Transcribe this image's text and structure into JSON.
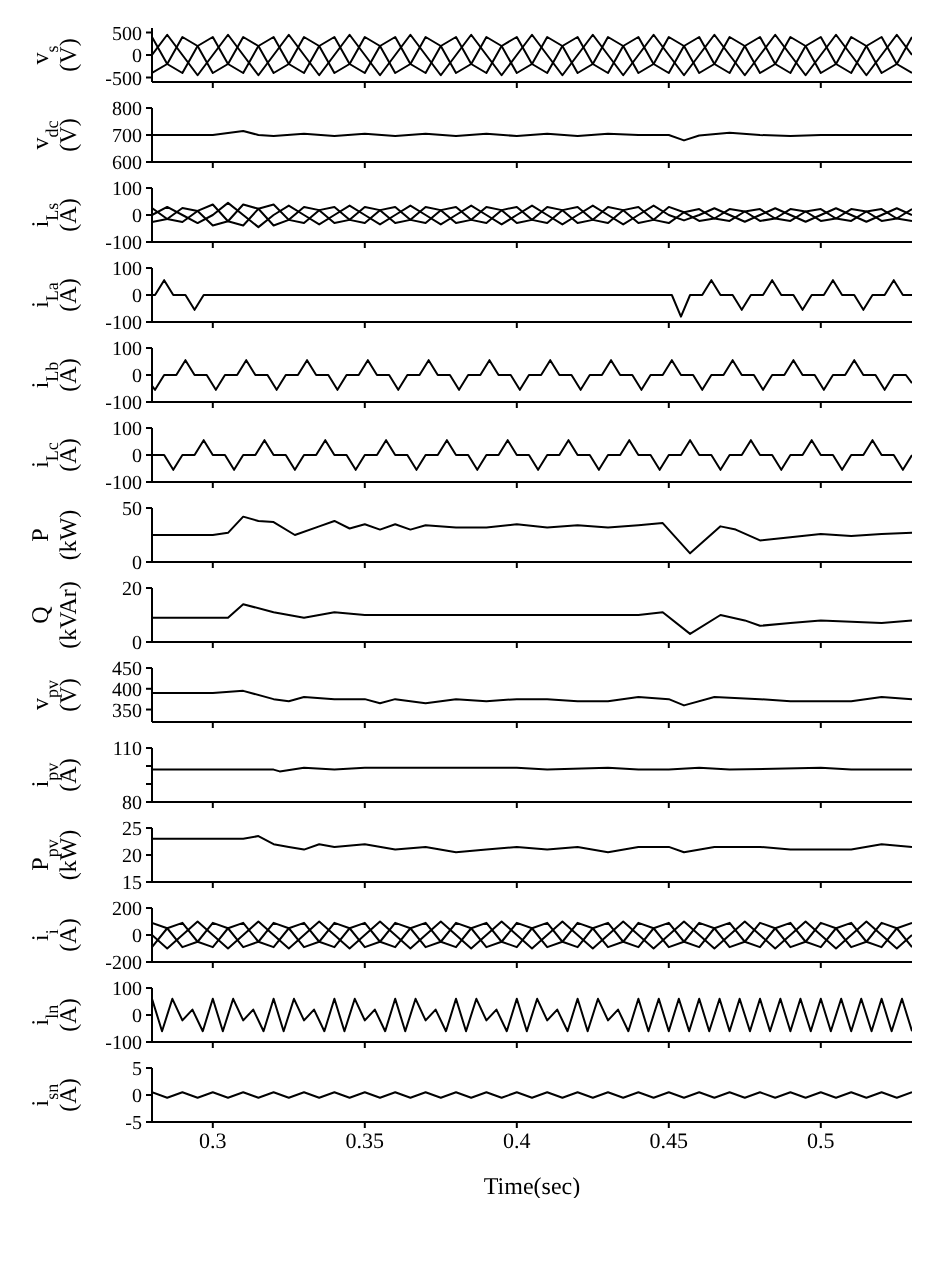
{
  "chart_data": [
    {
      "type": "line",
      "ylabel": "v$_{s}$ (V)",
      "xlim": [
        0.28,
        0.53
      ],
      "xticks": [
        0.3,
        0.35,
        0.4,
        0.45,
        0.5
      ],
      "ylim": [
        -600,
        600
      ],
      "yticks": [
        -500,
        0,
        500
      ],
      "tick_labels": "y",
      "x": [
        0.28,
        0.285,
        0.29,
        0.295,
        0.3,
        0.305,
        0.31,
        0.315,
        0.32,
        0.325,
        0.33,
        0.335,
        0.34,
        0.345,
        0.35,
        0.355,
        0.36,
        0.365,
        0.37,
        0.375,
        0.38,
        0.385,
        0.39,
        0.395,
        0.4,
        0.405,
        0.41,
        0.415,
        0.42,
        0.425,
        0.43,
        0.435,
        0.44,
        0.445,
        0.45,
        0.455,
        0.46,
        0.465,
        0.47,
        0.475,
        0.48,
        0.485,
        0.49,
        0.495,
        0.5,
        0.505,
        0.51,
        0.515,
        0.52,
        0.525,
        0.53
      ],
      "series": [
        {
          "color": "#000000",
          "values": [
            0,
            450,
            0,
            -450,
            0,
            450,
            0,
            -450,
            0,
            450,
            0,
            -450,
            0,
            450,
            0,
            -450,
            0,
            450,
            0,
            -450,
            0,
            450,
            0,
            -450,
            0,
            450,
            0,
            -450,
            0,
            450,
            0,
            -450,
            0,
            450,
            0,
            -450,
            0,
            450,
            0,
            -450,
            0,
            450,
            0,
            -450,
            0,
            450,
            0,
            -450,
            0,
            450,
            0
          ]
        },
        {
          "color": "#000000",
          "values": [
            -400,
            -200,
            400,
            200,
            -400,
            -200,
            400,
            200,
            -400,
            -200,
            400,
            200,
            -400,
            -200,
            400,
            200,
            -400,
            -200,
            400,
            200,
            -400,
            -200,
            400,
            200,
            -400,
            -200,
            400,
            200,
            -400,
            -200,
            400,
            200,
            -400,
            -200,
            400,
            200,
            -400,
            -200,
            400,
            200,
            -400,
            -200,
            400,
            200,
            -400,
            -200,
            400,
            200,
            -400,
            -200,
            400
          ]
        },
        {
          "color": "#000000",
          "values": [
            400,
            -200,
            -400,
            200,
            400,
            -200,
            -400,
            200,
            400,
            -200,
            -400,
            200,
            400,
            -200,
            -400,
            200,
            400,
            -200,
            -400,
            200,
            400,
            -200,
            -400,
            200,
            400,
            -200,
            -400,
            200,
            400,
            -200,
            -400,
            200,
            400,
            -200,
            -400,
            200,
            400,
            -200,
            -400,
            200,
            400,
            -200,
            -400,
            200,
            400,
            -200,
            -400,
            200,
            400,
            -200,
            -400
          ]
        }
      ]
    },
    {
      "type": "line",
      "ylabel": "v$_{dc}$ (V)",
      "xlim": [
        0.28,
        0.53
      ],
      "xticks": [
        0.3,
        0.35,
        0.4,
        0.45,
        0.5
      ],
      "ylim": [
        600,
        800
      ],
      "yticks": [
        600,
        700,
        800
      ],
      "tick_labels": "y",
      "series": [
        {
          "color": "#000000",
          "x": [
            0.28,
            0.3,
            0.31,
            0.315,
            0.32,
            0.33,
            0.34,
            0.35,
            0.36,
            0.37,
            0.38,
            0.39,
            0.4,
            0.41,
            0.42,
            0.43,
            0.44,
            0.45,
            0.455,
            0.46,
            0.47,
            0.48,
            0.49,
            0.5,
            0.53
          ],
          "values": [
            700,
            700,
            715,
            700,
            696,
            705,
            696,
            705,
            696,
            705,
            696,
            705,
            696,
            705,
            696,
            705,
            700,
            700,
            680,
            698,
            708,
            700,
            696,
            700,
            700
          ]
        }
      ]
    },
    {
      "type": "line",
      "ylabel": "i$_{Ls}$ (A)",
      "xlim": [
        0.28,
        0.53
      ],
      "xticks": [
        0.3,
        0.35,
        0.4,
        0.45,
        0.5
      ],
      "ylim": [
        -100,
        100
      ],
      "yticks": [
        -100,
        0,
        100
      ],
      "tick_labels": "y",
      "x": [
        0.28,
        0.285,
        0.29,
        0.295,
        0.3,
        0.305,
        0.31,
        0.315,
        0.32,
        0.325,
        0.33,
        0.335,
        0.34,
        0.345,
        0.35,
        0.355,
        0.36,
        0.365,
        0.37,
        0.375,
        0.38,
        0.385,
        0.39,
        0.395,
        0.4,
        0.405,
        0.41,
        0.415,
        0.42,
        0.425,
        0.43,
        0.435,
        0.44,
        0.445,
        0.45,
        0.455,
        0.46,
        0.465,
        0.47,
        0.475,
        0.48,
        0.485,
        0.49,
        0.495,
        0.5,
        0.505,
        0.51,
        0.515,
        0.52,
        0.525,
        0.53
      ],
      "series": [
        {
          "color": "#000000",
          "values": [
            0,
            30,
            0,
            -30,
            0,
            45,
            0,
            -45,
            0,
            35,
            0,
            -35,
            0,
            35,
            0,
            -35,
            0,
            35,
            0,
            -35,
            0,
            35,
            0,
            -35,
            0,
            35,
            0,
            -35,
            0,
            35,
            0,
            -35,
            0,
            35,
            0,
            -20,
            0,
            25,
            0,
            -25,
            0,
            25,
            0,
            -25,
            0,
            25,
            0,
            -25,
            0,
            25,
            0
          ]
        },
        {
          "color": "#000000",
          "values": [
            -26,
            -15,
            26,
            15,
            -39,
            -23,
            39,
            23,
            -39,
            -18,
            30,
            18,
            -30,
            -18,
            30,
            18,
            -30,
            -18,
            30,
            18,
            -30,
            -18,
            30,
            18,
            -30,
            -18,
            30,
            18,
            -30,
            -18,
            30,
            18,
            -30,
            -18,
            30,
            10,
            -22,
            -13,
            22,
            13,
            -22,
            -13,
            22,
            13,
            -22,
            -13,
            22,
            13,
            -22,
            -13,
            22
          ]
        },
        {
          "color": "#000000",
          "values": [
            26,
            -15,
            -26,
            15,
            39,
            -23,
            -39,
            23,
            39,
            -18,
            -30,
            18,
            30,
            -18,
            -30,
            18,
            30,
            -18,
            -30,
            18,
            30,
            -18,
            -30,
            18,
            30,
            -18,
            -30,
            18,
            30,
            -18,
            -30,
            18,
            30,
            -18,
            -30,
            10,
            22,
            -13,
            -22,
            13,
            22,
            -13,
            -22,
            13,
            22,
            -13,
            -22,
            13,
            22,
            -13,
            -22
          ]
        }
      ]
    },
    {
      "type": "line",
      "ylabel": "i$_{La}$ (A)",
      "xlim": [
        0.28,
        0.53
      ],
      "xticks": [
        0.3,
        0.35,
        0.4,
        0.45,
        0.5
      ],
      "ylim": [
        -100,
        100
      ],
      "yticks": [
        -100,
        0,
        100
      ],
      "tick_labels": "y",
      "series": [
        {
          "color": "#000000",
          "x": [
            0.28,
            0.281,
            0.284,
            0.287,
            0.291,
            0.294,
            0.297,
            0.451,
            0.454,
            0.457,
            0.461,
            0.464,
            0.467,
            0.471,
            0.474,
            0.477,
            0.481,
            0.484,
            0.487,
            0.491,
            0.494,
            0.497,
            0.501,
            0.504,
            0.507,
            0.511,
            0.514,
            0.517,
            0.521,
            0.524,
            0.527,
            0.53
          ],
          "values": [
            0,
            0,
            55,
            0,
            0,
            -55,
            0,
            0,
            -80,
            0,
            0,
            55,
            0,
            0,
            -55,
            0,
            0,
            55,
            0,
            0,
            -55,
            0,
            0,
            55,
            0,
            0,
            -55,
            0,
            0,
            55,
            0,
            0
          ]
        }
      ]
    },
    {
      "type": "line",
      "ylabel": "i$_{Lb}$ (A)",
      "xlim": [
        0.28,
        0.53
      ],
      "xticks": [
        0.3,
        0.35,
        0.4,
        0.45,
        0.5
      ],
      "ylim": [
        -100,
        100
      ],
      "yticks": [
        -100,
        0,
        100
      ],
      "tick_labels": "y",
      "series": [
        {
          "color": "#000000",
          "x": [
            0.28,
            0.281,
            0.284,
            0.288,
            0.291,
            0.294,
            0.298,
            0.301,
            0.304,
            0.308,
            0.311,
            0.314,
            0.318,
            0.321,
            0.324,
            0.328,
            0.331,
            0.334,
            0.338,
            0.341,
            0.344,
            0.348,
            0.351,
            0.354,
            0.358,
            0.361,
            0.364,
            0.368,
            0.371,
            0.374,
            0.378,
            0.381,
            0.384,
            0.388,
            0.391,
            0.394,
            0.398,
            0.401,
            0.404,
            0.408,
            0.411,
            0.414,
            0.418,
            0.421,
            0.424,
            0.428,
            0.431,
            0.434,
            0.438,
            0.441,
            0.444,
            0.448,
            0.451,
            0.454,
            0.458,
            0.461,
            0.464,
            0.468,
            0.471,
            0.474,
            0.478,
            0.481,
            0.484,
            0.488,
            0.491,
            0.494,
            0.498,
            0.501,
            0.504,
            0.508,
            0.511,
            0.514,
            0.518,
            0.521,
            0.524,
            0.528,
            0.53
          ],
          "values": [
            -40,
            -55,
            0,
            0,
            55,
            0,
            0,
            -55,
            0,
            0,
            55,
            0,
            0,
            -55,
            0,
            0,
            55,
            0,
            0,
            -55,
            0,
            0,
            55,
            0,
            0,
            -55,
            0,
            0,
            55,
            0,
            0,
            -55,
            0,
            0,
            55,
            0,
            0,
            -55,
            0,
            0,
            55,
            0,
            0,
            -55,
            0,
            0,
            55,
            0,
            0,
            -55,
            0,
            0,
            55,
            0,
            0,
            -55,
            0,
            0,
            55,
            0,
            0,
            -55,
            0,
            0,
            55,
            0,
            0,
            -55,
            0,
            0,
            55,
            0,
            0,
            -55,
            0,
            0,
            -30
          ]
        }
      ]
    },
    {
      "type": "line",
      "ylabel": "i$_{Lc}$ (A)",
      "xlim": [
        0.28,
        0.53
      ],
      "xticks": [
        0.3,
        0.35,
        0.4,
        0.45,
        0.5
      ],
      "ylim": [
        -100,
        100
      ],
      "yticks": [
        -100,
        0,
        100
      ],
      "tick_labels": "y",
      "series": [
        {
          "color": "#000000",
          "x": [
            0.28,
            0.284,
            0.287,
            0.29,
            0.294,
            0.297,
            0.3,
            0.304,
            0.307,
            0.31,
            0.314,
            0.317,
            0.32,
            0.324,
            0.327,
            0.33,
            0.334,
            0.337,
            0.34,
            0.344,
            0.347,
            0.35,
            0.354,
            0.357,
            0.36,
            0.364,
            0.367,
            0.37,
            0.374,
            0.377,
            0.38,
            0.384,
            0.387,
            0.39,
            0.394,
            0.397,
            0.4,
            0.404,
            0.407,
            0.41,
            0.414,
            0.417,
            0.42,
            0.424,
            0.427,
            0.43,
            0.434,
            0.437,
            0.44,
            0.444,
            0.447,
            0.45,
            0.454,
            0.457,
            0.46,
            0.464,
            0.467,
            0.47,
            0.474,
            0.477,
            0.48,
            0.484,
            0.487,
            0.49,
            0.494,
            0.497,
            0.5,
            0.504,
            0.507,
            0.51,
            0.514,
            0.517,
            0.52,
            0.524,
            0.527,
            0.53
          ],
          "values": [
            0,
            0,
            -55,
            0,
            0,
            55,
            0,
            0,
            -55,
            0,
            0,
            55,
            0,
            0,
            -55,
            0,
            0,
            55,
            0,
            0,
            -55,
            0,
            0,
            55,
            0,
            0,
            -55,
            0,
            0,
            55,
            0,
            0,
            -55,
            0,
            0,
            55,
            0,
            0,
            -55,
            0,
            0,
            55,
            0,
            0,
            -55,
            0,
            0,
            55,
            0,
            0,
            -55,
            0,
            0,
            55,
            0,
            0,
            -55,
            0,
            0,
            55,
            0,
            0,
            -55,
            0,
            0,
            55,
            0,
            0,
            -55,
            0,
            0,
            55,
            0,
            0,
            -55,
            0
          ]
        }
      ]
    },
    {
      "type": "line",
      "ylabel": "P (kW)",
      "xlim": [
        0.28,
        0.53
      ],
      "xticks": [
        0.3,
        0.35,
        0.4,
        0.45,
        0.5
      ],
      "ylim": [
        0,
        50
      ],
      "yticks": [
        0,
        50
      ],
      "tick_labels": "y",
      "series": [
        {
          "color": "#000000",
          "x": [
            0.28,
            0.29,
            0.3,
            0.305,
            0.31,
            0.315,
            0.32,
            0.327,
            0.335,
            0.34,
            0.345,
            0.35,
            0.355,
            0.36,
            0.365,
            0.37,
            0.38,
            0.39,
            0.4,
            0.41,
            0.42,
            0.43,
            0.44,
            0.448,
            0.457,
            0.467,
            0.472,
            0.48,
            0.49,
            0.5,
            0.51,
            0.52,
            0.53
          ],
          "values": [
            25,
            25,
            25,
            27,
            42,
            38,
            37,
            25,
            33,
            38,
            31,
            35,
            30,
            35,
            30,
            34,
            32,
            32,
            35,
            32,
            34,
            32,
            34,
            36,
            8,
            33,
            30,
            20,
            23,
            26,
            24,
            26,
            27
          ]
        }
      ]
    },
    {
      "type": "line",
      "ylabel": "Q (kVAr)",
      "xlim": [
        0.28,
        0.53
      ],
      "xticks": [
        0.3,
        0.35,
        0.4,
        0.45,
        0.5
      ],
      "ylim": [
        0,
        20
      ],
      "yticks": [
        0,
        20
      ],
      "tick_labels": "y",
      "series": [
        {
          "color": "#000000",
          "x": [
            0.28,
            0.3,
            0.305,
            0.31,
            0.32,
            0.33,
            0.34,
            0.35,
            0.36,
            0.38,
            0.4,
            0.42,
            0.44,
            0.448,
            0.457,
            0.467,
            0.475,
            0.48,
            0.49,
            0.5,
            0.52,
            0.53
          ],
          "values": [
            9,
            9,
            9,
            14,
            11,
            9,
            11,
            10,
            10,
            10,
            10,
            10,
            10,
            11,
            3,
            10,
            8,
            6,
            7,
            8,
            7,
            8
          ]
        }
      ]
    },
    {
      "type": "line",
      "ylabel": "v$_{pv}$ (V)",
      "xlim": [
        0.28,
        0.53
      ],
      "xticks": [
        0.3,
        0.35,
        0.4,
        0.45,
        0.5
      ],
      "ylim": [
        320,
        450
      ],
      "yticks": [
        350,
        400,
        450
      ],
      "tick_labels": "y",
      "series": [
        {
          "color": "#000000",
          "x": [
            0.28,
            0.3,
            0.31,
            0.32,
            0.325,
            0.33,
            0.34,
            0.35,
            0.355,
            0.36,
            0.37,
            0.38,
            0.39,
            0.4,
            0.41,
            0.42,
            0.43,
            0.44,
            0.45,
            0.455,
            0.465,
            0.48,
            0.49,
            0.5,
            0.51,
            0.52,
            0.53
          ],
          "values": [
            390,
            390,
            395,
            375,
            370,
            380,
            375,
            375,
            365,
            375,
            365,
            375,
            370,
            375,
            375,
            370,
            370,
            380,
            375,
            360,
            380,
            375,
            370,
            370,
            370,
            380,
            375
          ]
        }
      ]
    },
    {
      "type": "line",
      "ylabel": "i$_{pv}$ (A)",
      "xlim": [
        0.28,
        0.53
      ],
      "xticks": [
        0.3,
        0.35,
        0.4,
        0.45,
        0.5
      ],
      "ylim": [
        80,
        110
      ],
      "yticks": [
        80,
        {
          "value": 90,
          "label": null
        },
        {
          "value": 100,
          "label": null
        },
        110
      ],
      "tick_labels": "y",
      "series": [
        {
          "color": "#000000",
          "x": [
            0.28,
            0.3,
            0.32,
            0.322,
            0.33,
            0.34,
            0.35,
            0.36,
            0.38,
            0.4,
            0.41,
            0.43,
            0.44,
            0.45,
            0.46,
            0.47,
            0.5,
            0.51,
            0.53
          ],
          "values": [
            98,
            98,
            98,
            97,
            99,
            98,
            99,
            99,
            99,
            99,
            98,
            99,
            98,
            98,
            99,
            98,
            99,
            98,
            98
          ]
        }
      ]
    },
    {
      "type": "line",
      "ylabel": "P$_{pv}$ (kW)",
      "xlim": [
        0.28,
        0.53
      ],
      "xticks": [
        0.3,
        0.35,
        0.4,
        0.45,
        0.5
      ],
      "ylim": [
        15,
        25
      ],
      "yticks": [
        15,
        20,
        25
      ],
      "tick_labels": "y",
      "series": [
        {
          "color": "#000000",
          "x": [
            0.28,
            0.3,
            0.31,
            0.315,
            0.32,
            0.325,
            0.33,
            0.335,
            0.34,
            0.35,
            0.36,
            0.37,
            0.38,
            0.39,
            0.4,
            0.41,
            0.42,
            0.43,
            0.44,
            0.45,
            0.455,
            0.465,
            0.48,
            0.49,
            0.5,
            0.51,
            0.52,
            0.53
          ],
          "values": [
            23,
            23,
            23,
            23.5,
            22,
            21.5,
            21,
            22,
            21.5,
            22,
            21,
            21.5,
            20.5,
            21,
            21.5,
            21,
            21.5,
            20.5,
            21.5,
            21.5,
            20.5,
            21.5,
            21.5,
            21,
            21,
            21,
            22,
            21.5
          ]
        }
      ]
    },
    {
      "type": "line",
      "ylabel": "i$_{i}$ (A)",
      "xlim": [
        0.28,
        0.53
      ],
      "xticks": [
        0.3,
        0.35,
        0.4,
        0.45,
        0.5
      ],
      "ylim": [
        -200,
        200
      ],
      "yticks": [
        -200,
        0,
        200
      ],
      "tick_labels": "y",
      "x": [
        0.28,
        0.285,
        0.29,
        0.295,
        0.3,
        0.305,
        0.31,
        0.315,
        0.32,
        0.325,
        0.33,
        0.335,
        0.34,
        0.345,
        0.35,
        0.355,
        0.36,
        0.365,
        0.37,
        0.375,
        0.38,
        0.385,
        0.39,
        0.395,
        0.4,
        0.405,
        0.41,
        0.415,
        0.42,
        0.425,
        0.43,
        0.435,
        0.44,
        0.445,
        0.45,
        0.455,
        0.46,
        0.465,
        0.47,
        0.475,
        0.48,
        0.485,
        0.49,
        0.495,
        0.5,
        0.505,
        0.51,
        0.515,
        0.52,
        0.525,
        0.53
      ],
      "series": [
        {
          "color": "#000000",
          "values": [
            0,
            -100,
            0,
            100,
            0,
            -100,
            0,
            100,
            0,
            -100,
            0,
            100,
            0,
            -100,
            0,
            100,
            0,
            -100,
            0,
            100,
            0,
            -100,
            0,
            100,
            0,
            -100,
            0,
            100,
            0,
            -100,
            0,
            100,
            0,
            -100,
            0,
            100,
            0,
            -100,
            0,
            100,
            0,
            -100,
            0,
            100,
            0,
            -100,
            0,
            100,
            0,
            -100,
            0
          ]
        },
        {
          "color": "#000000",
          "values": [
            90,
            50,
            -90,
            -50,
            90,
            50,
            -90,
            -50,
            90,
            50,
            -90,
            -50,
            90,
            50,
            -90,
            -50,
            90,
            50,
            -90,
            -50,
            90,
            50,
            -90,
            -50,
            90,
            50,
            -90,
            -50,
            90,
            50,
            -90,
            -50,
            90,
            50,
            -90,
            -50,
            90,
            50,
            -90,
            -50,
            90,
            50,
            -90,
            -50,
            90,
            50,
            -90,
            -50,
            90,
            50,
            -90
          ]
        },
        {
          "color": "#000000",
          "values": [
            -90,
            50,
            90,
            -50,
            -90,
            50,
            90,
            -50,
            -90,
            50,
            90,
            -50,
            -90,
            50,
            90,
            -50,
            -90,
            50,
            90,
            -50,
            -90,
            50,
            90,
            -50,
            -90,
            50,
            90,
            -50,
            -90,
            50,
            90,
            -50,
            -90,
            50,
            90,
            -50,
            -90,
            50,
            90,
            -50,
            -90,
            50,
            90,
            -50,
            -90,
            50,
            90,
            -50,
            -90,
            50,
            90
          ]
        }
      ]
    },
    {
      "type": "line",
      "ylabel": "i$_{ln}$ (A)",
      "xlim": [
        0.28,
        0.53
      ],
      "xticks": [
        0.3,
        0.35,
        0.4,
        0.45,
        0.5
      ],
      "ylim": [
        -100,
        100
      ],
      "yticks": [
        -100,
        0,
        100
      ],
      "tick_labels": "y",
      "series": [
        {
          "color": "#000000",
          "x": [
            0.28,
            0.2833,
            0.2867,
            0.29,
            0.2933,
            0.2967,
            0.3,
            0.3033,
            0.3067,
            0.31,
            0.3133,
            0.3167,
            0.32,
            0.3233,
            0.3267,
            0.33,
            0.3333,
            0.3367,
            0.34,
            0.3433,
            0.3467,
            0.35,
            0.3533,
            0.3567,
            0.36,
            0.3633,
            0.3667,
            0.37,
            0.3733,
            0.3767,
            0.38,
            0.3833,
            0.3867,
            0.39,
            0.3933,
            0.3967,
            0.4,
            0.4033,
            0.4067,
            0.41,
            0.4133,
            0.4167,
            0.42,
            0.4233,
            0.4267,
            0.43,
            0.4333,
            0.4367,
            0.44,
            0.4433,
            0.4467,
            0.45,
            0.4533,
            0.4567,
            0.46,
            0.4633,
            0.4667,
            0.47,
            0.4733,
            0.4767,
            0.48,
            0.4833,
            0.4867,
            0.49,
            0.4933,
            0.4967,
            0.5,
            0.5033,
            0.5067,
            0.51,
            0.5133,
            0.5167,
            0.52,
            0.5233,
            0.5267,
            0.53
          ],
          "values": [
            60,
            -60,
            60,
            -20,
            20,
            -60,
            60,
            -60,
            60,
            -20,
            20,
            -60,
            60,
            -60,
            60,
            -20,
            20,
            -60,
            60,
            -60,
            60,
            -20,
            20,
            -60,
            60,
            -60,
            60,
            -20,
            20,
            -60,
            60,
            -60,
            60,
            -20,
            20,
            -60,
            60,
            -60,
            60,
            -20,
            20,
            -60,
            60,
            -60,
            60,
            -20,
            20,
            -60,
            60,
            -60,
            60,
            -60,
            60,
            -60,
            60,
            -60,
            60,
            -60,
            60,
            -60,
            60,
            -60,
            60,
            -60,
            60,
            -60,
            60,
            -60,
            60,
            -60,
            60,
            -60,
            60,
            -60,
            60,
            -60
          ]
        }
      ]
    },
    {
      "type": "line",
      "ylabel": "i$_{sn}$ (A)",
      "xlabel": "Time(sec)",
      "xlim": [
        0.28,
        0.53
      ],
      "xticks": [
        0.3,
        0.35,
        0.4,
        0.45,
        0.5
      ],
      "ylim": [
        -5,
        5
      ],
      "yticks": [
        -5,
        0,
        5
      ],
      "x": [
        0.28,
        0.285,
        0.29,
        0.295,
        0.3,
        0.305,
        0.31,
        0.315,
        0.32,
        0.325,
        0.33,
        0.335,
        0.34,
        0.345,
        0.35,
        0.355,
        0.36,
        0.365,
        0.37,
        0.375,
        0.38,
        0.385,
        0.39,
        0.395,
        0.4,
        0.405,
        0.41,
        0.415,
        0.42,
        0.425,
        0.43,
        0.435,
        0.44,
        0.445,
        0.45,
        0.455,
        0.46,
        0.465,
        0.47,
        0.475,
        0.48,
        0.485,
        0.49,
        0.495,
        0.5,
        0.505,
        0.51,
        0.515,
        0.52,
        0.525,
        0.53
      ],
      "series": [
        {
          "color": "#000000",
          "values": [
            0.5,
            -0.5,
            0.5,
            -0.5,
            0.5,
            -0.5,
            0.5,
            -0.5,
            0.5,
            -0.5,
            0.5,
            -0.5,
            0.5,
            -0.5,
            0.5,
            -0.5,
            0.5,
            -0.5,
            0.5,
            -0.5,
            0.5,
            -0.5,
            0.5,
            -0.5,
            0.5,
            -0.5,
            0.5,
            -0.5,
            0.5,
            -0.5,
            0.5,
            -0.5,
            0.5,
            -0.5,
            0.5,
            -0.5,
            0.5,
            -0.5,
            0.5,
            -0.5,
            0.5,
            -0.5,
            0.5,
            -0.5,
            0.5,
            -0.5,
            0.5,
            -0.5,
            0.5,
            -0.5,
            0.5
          ]
        }
      ]
    }
  ]
}
